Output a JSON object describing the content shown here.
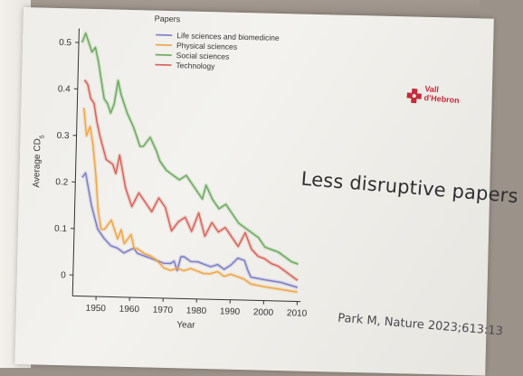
{
  "slide": {
    "headline": "Less disruptive papers",
    "citation": "Park M, Nature 2023;613:13",
    "logo": {
      "line1": "Vall",
      "line2": "d'Hebron"
    }
  },
  "chart_data": {
    "type": "line",
    "legend_title": "Papers",
    "legend_position": "top-center",
    "xlabel": "Year",
    "ylabel": "Average CD5",
    "xlim": [
      1943,
      2011
    ],
    "ylim": [
      -0.045,
      0.53
    ],
    "x_ticks": [
      1950,
      1960,
      1970,
      1980,
      1990,
      2000,
      2010
    ],
    "y_ticks": [
      0,
      0.1,
      0.2,
      0.3,
      0.4,
      0.5
    ],
    "y_tick_labels": [
      "0",
      "0.1",
      "0.2",
      "0.3",
      "0.4",
      "0.5"
    ],
    "grid": false,
    "series": [
      {
        "name": "Life sciences and biomedicine",
        "color": "#7a7ac8",
        "x": [
          1945,
          1946,
          1948,
          1950,
          1952,
          1954,
          1956,
          1958,
          1960,
          1961,
          1962,
          1964,
          1966,
          1968,
          1970,
          1972,
          1973,
          1974,
          1975,
          1976,
          1978,
          1980,
          1982,
          1984,
          1986,
          1988,
          1990,
          1992,
          1994,
          1995,
          1996,
          2000,
          2005,
          2010
        ],
        "y": [
          0.21,
          0.22,
          0.15,
          0.1,
          0.08,
          0.065,
          0.06,
          0.05,
          0.058,
          0.06,
          0.05,
          0.045,
          0.04,
          0.035,
          0.03,
          0.03,
          0.035,
          0.015,
          0.045,
          0.045,
          0.035,
          0.035,
          0.03,
          0.025,
          0.03,
          0.02,
          0.03,
          0.045,
          0.04,
          0.02,
          0.005,
          0.0,
          -0.005,
          -0.015
        ]
      },
      {
        "name": "Physical sciences",
        "color": "#f0a443",
        "x": [
          1945,
          1946,
          1947,
          1948,
          1949,
          1950,
          1951,
          1952,
          1954,
          1956,
          1957,
          1958,
          1960,
          1961,
          1962,
          1964,
          1966,
          1968,
          1970,
          1972,
          1974,
          1976,
          1978,
          1980,
          1982,
          1984,
          1986,
          1988,
          1990,
          1992,
          1994,
          1996,
          2000,
          2005,
          2010
        ],
        "y": [
          0.36,
          0.3,
          0.32,
          0.28,
          0.22,
          0.14,
          0.1,
          0.1,
          0.12,
          0.08,
          0.1,
          0.07,
          0.09,
          0.06,
          0.06,
          0.05,
          0.045,
          0.035,
          0.02,
          0.015,
          0.02,
          0.015,
          0.02,
          0.015,
          0.01,
          0.01,
          0.015,
          0.005,
          0.01,
          0.005,
          0.0,
          -0.01,
          -0.015,
          -0.02,
          -0.025
        ]
      },
      {
        "name": "Social sciences",
        "color": "#67a85a",
        "x": [
          1944,
          1945,
          1946,
          1947,
          1948,
          1949,
          1950,
          1951,
          1952,
          1953,
          1954,
          1955,
          1956,
          1958,
          1960,
          1962,
          1963,
          1965,
          1967,
          1968,
          1970,
          1972,
          1974,
          1976,
          1978,
          1980,
          1981,
          1982,
          1984,
          1986,
          1988,
          1990,
          1992,
          1994,
          1996,
          1998,
          2000,
          2002,
          2004,
          2006,
          2008,
          2010
        ],
        "y": [
          0.5,
          0.52,
          0.5,
          0.48,
          0.49,
          0.46,
          0.42,
          0.38,
          0.37,
          0.35,
          0.37,
          0.42,
          0.39,
          0.35,
          0.32,
          0.28,
          0.28,
          0.3,
          0.27,
          0.25,
          0.23,
          0.22,
          0.21,
          0.22,
          0.2,
          0.18,
          0.17,
          0.2,
          0.17,
          0.15,
          0.16,
          0.14,
          0.12,
          0.11,
          0.1,
          0.09,
          0.07,
          0.065,
          0.06,
          0.05,
          0.04,
          0.035
        ]
      },
      {
        "name": "Technology",
        "color": "#d95e55",
        "x": [
          1945,
          1946,
          1947,
          1948,
          1949,
          1950,
          1952,
          1954,
          1955,
          1956,
          1958,
          1960,
          1962,
          1964,
          1966,
          1968,
          1970,
          1972,
          1974,
          1976,
          1978,
          1980,
          1982,
          1984,
          1986,
          1988,
          1990,
          1992,
          1994,
          1996,
          1998,
          2000,
          2002,
          2004,
          2006,
          2008,
          2010
        ],
        "y": [
          0.42,
          0.41,
          0.38,
          0.37,
          0.33,
          0.3,
          0.25,
          0.24,
          0.22,
          0.26,
          0.19,
          0.15,
          0.18,
          0.16,
          0.14,
          0.17,
          0.15,
          0.1,
          0.12,
          0.13,
          0.1,
          0.14,
          0.09,
          0.12,
          0.1,
          0.11,
          0.09,
          0.07,
          0.1,
          0.065,
          0.05,
          0.045,
          0.035,
          0.03,
          0.02,
          0.01,
          0.0
        ]
      }
    ]
  }
}
